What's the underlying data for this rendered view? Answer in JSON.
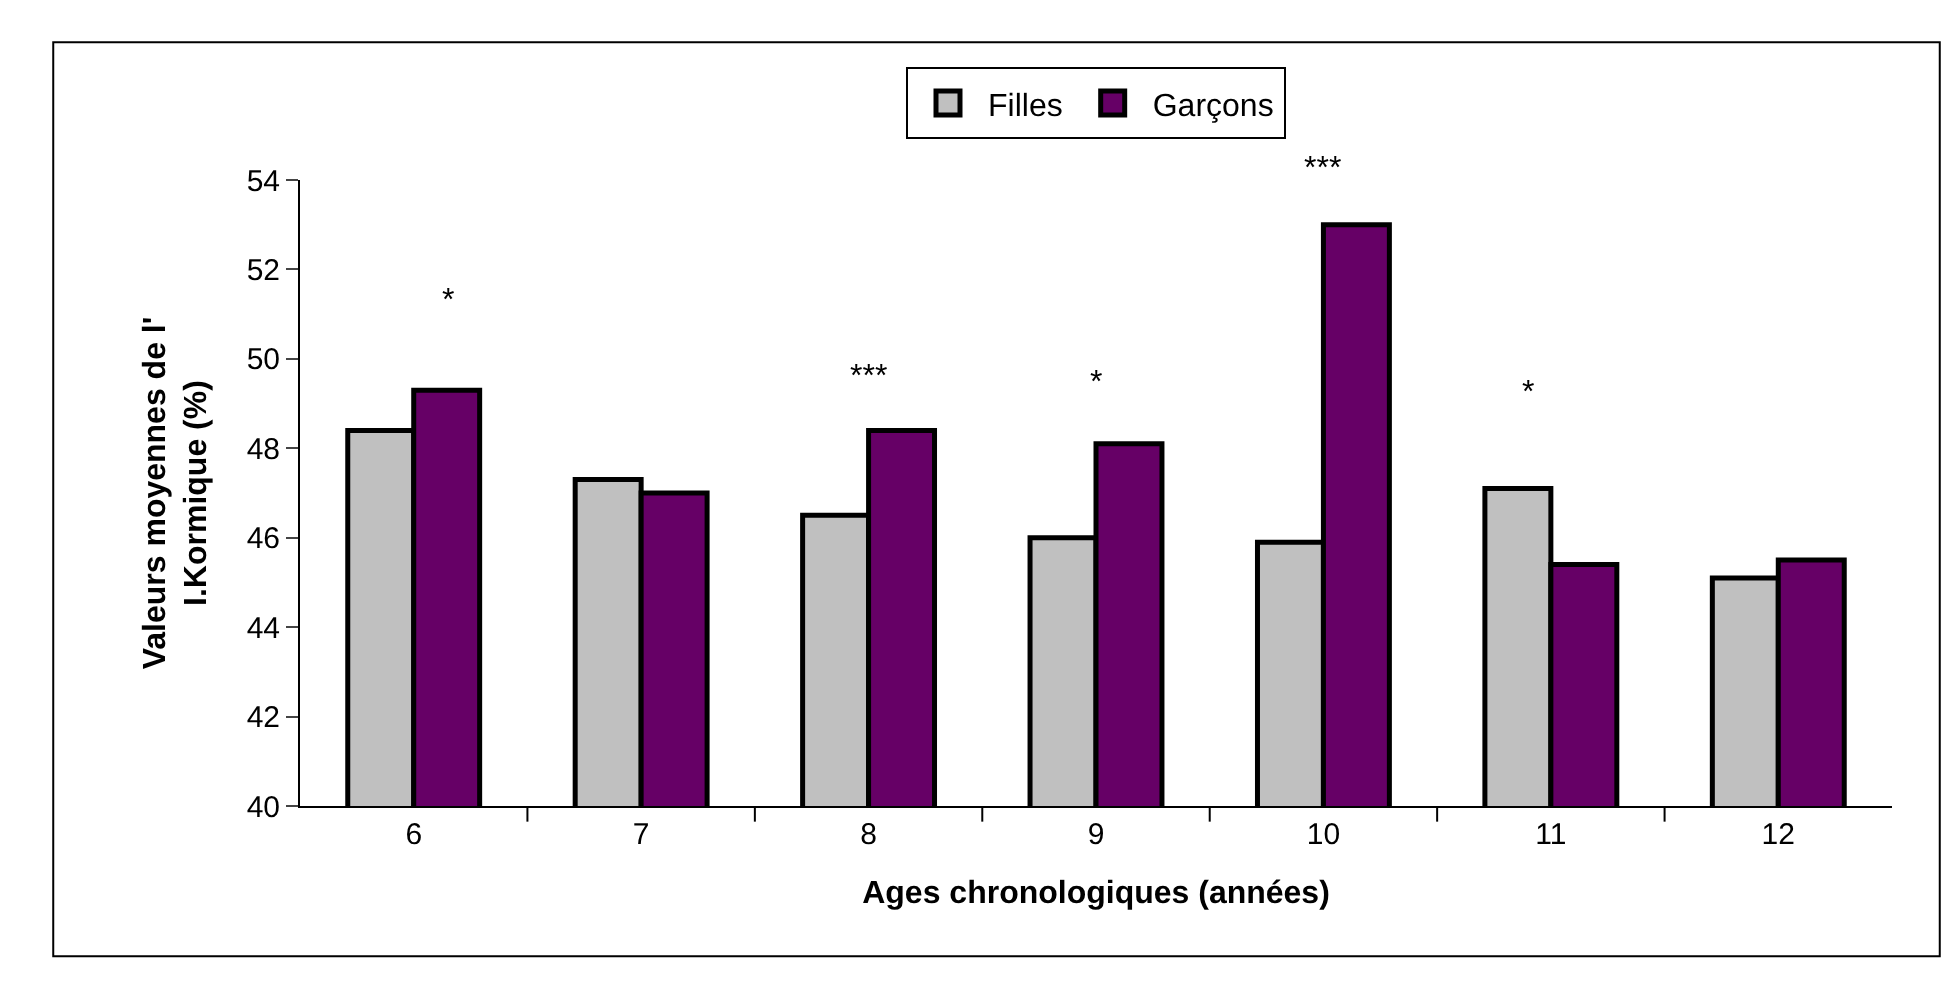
{
  "chart_data": {
    "type": "bar",
    "xlabel": "Ages chronologiques (années)",
    "ylabel": "Valeurs moyennes de l' I.Kormique (%)",
    "categories": [
      "6",
      "7",
      "8",
      "9",
      "10",
      "11",
      "12"
    ],
    "series": [
      {
        "name": "Filles",
        "color": "#c0c0c0",
        "values": [
          48.4,
          47.3,
          46.5,
          46.0,
          45.9,
          47.1,
          45.1
        ]
      },
      {
        "name": "Garçons",
        "color": "#660066",
        "values": [
          49.3,
          47.0,
          48.4,
          48.1,
          53.0,
          45.4,
          45.5
        ]
      }
    ],
    "ylim": [
      40,
      54
    ],
    "yticks": [
      40,
      42,
      44,
      46,
      48,
      50,
      52,
      54
    ],
    "legend": "top",
    "annotations": [
      "*",
      "***",
      "*",
      "***",
      "*"
    ]
  }
}
